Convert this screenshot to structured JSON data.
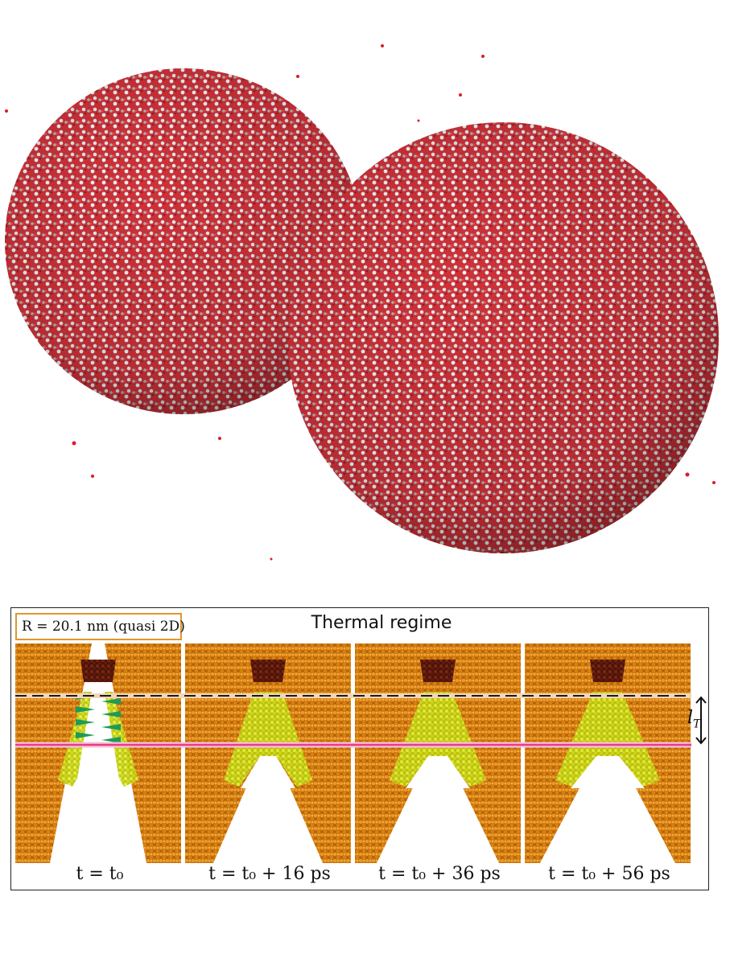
{
  "figure": {
    "colors": {
      "water_red": "#d81e2a",
      "water_white": "#eeeeee",
      "grain_orange": "#e08a14",
      "grain_yellow": "#d6e21c",
      "grain_dark": "#5e1a0c",
      "arrow_green": "#1f9a5a",
      "pink_line": "#e83c8a",
      "dashed_line": "#1a1a1a",
      "box_border": "#e0972c"
    },
    "top_scene": {
      "description_icon": "water-droplets-collision"
    },
    "panel": {
      "radius_label": "R = 20.1 nm (quasi 2D)",
      "title": "Thermal regime",
      "scale_label": "l",
      "scale_label_sub": "T",
      "frames": [
        {
          "caption": "t = t₀",
          "hole_depth": 0.55
        },
        {
          "caption": "t = t₀ + 16 ps",
          "hole_depth": 0.58
        },
        {
          "caption": "t = t₀ + 36 ps",
          "hole_depth": 0.6
        },
        {
          "caption": "t = t₀ + 56 ps",
          "hole_depth": 0.62
        }
      ]
    }
  }
}
